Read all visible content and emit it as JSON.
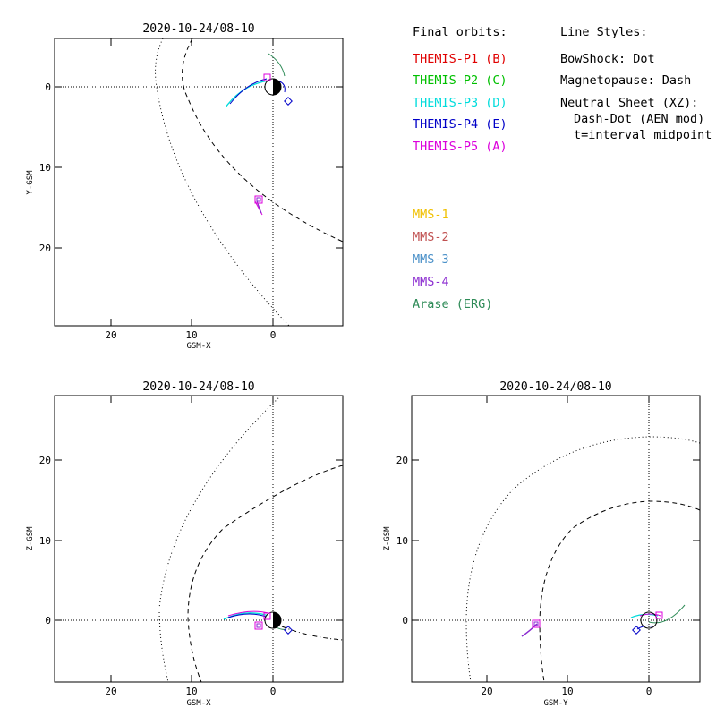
{
  "panels": [
    {
      "id": "xy",
      "title": "2020-10-24/08-10",
      "xlabel": "GSM-X",
      "ylabel": "Y-GSM",
      "xticks": [
        "20",
        "10",
        "0"
      ],
      "yticks": [
        "0",
        "10",
        "20"
      ]
    },
    {
      "id": "xz",
      "title": "2020-10-24/08-10",
      "xlabel": "GSM-X",
      "ylabel": "Z-GSM",
      "xticks": [
        "20",
        "10",
        "0"
      ],
      "yticks": [
        "20",
        "10",
        "0"
      ]
    },
    {
      "id": "yz",
      "title": "2020-10-24/08-10",
      "xlabel": "GSM-Y",
      "ylabel": "Z-GSM",
      "xticks": [
        "20",
        "10",
        "0"
      ],
      "yticks": [
        "20",
        "10",
        "0"
      ]
    }
  ],
  "legend": {
    "orbits_title": "Final orbits:",
    "themis": [
      {
        "label": "THEMIS-P1 (B)",
        "color": "#e00000"
      },
      {
        "label": "THEMIS-P2 (C)",
        "color": "#00c000"
      },
      {
        "label": "THEMIS-P3 (D)",
        "color": "#00dcdc"
      },
      {
        "label": "THEMIS-P4 (E)",
        "color": "#0000c8"
      },
      {
        "label": "THEMIS-P5 (A)",
        "color": "#dc00dc"
      }
    ],
    "mms": [
      {
        "label": "MMS-1",
        "color": "#f0c000"
      },
      {
        "label": "MMS-2",
        "color": "#c05050"
      },
      {
        "label": "MMS-3",
        "color": "#4a90c8"
      },
      {
        "label": "MMS-4",
        "color": "#8a2ad0"
      },
      {
        "label": "Arase (ERG)",
        "color": "#2e8b57"
      }
    ],
    "styles_title": "Line Styles:",
    "styles": [
      "BowShock: Dot",
      "Magnetopause: Dash",
      "Neutral Sheet (XZ):",
      "Dash-Dot (AEN mod)",
      "t=interval midpoint"
    ]
  }
}
